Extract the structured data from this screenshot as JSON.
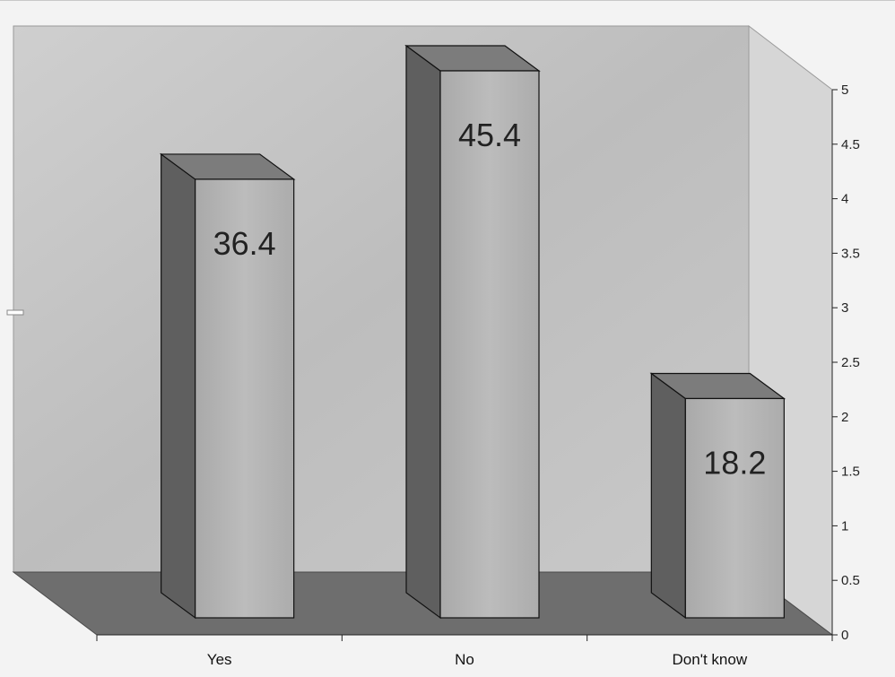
{
  "chart_data": {
    "type": "bar",
    "style": "3d-column",
    "categories": [
      "Yes",
      "No",
      "Don't know"
    ],
    "values": [
      36.4,
      45.4,
      18.2
    ],
    "data_labels": [
      "36.4",
      "45.4",
      "18.2"
    ],
    "ylim": [
      0,
      5
    ],
    "y_ticks": [
      "0",
      "0.5",
      "1",
      "1.5",
      "2",
      "2.5",
      "3",
      "3.5",
      "4",
      "4.5",
      "5"
    ],
    "y_axis_side": "right",
    "grid": false,
    "legend": "none",
    "title": "",
    "xlabel": "",
    "ylabel": ""
  },
  "colors": {
    "wall": "#c4c4c4",
    "side_wall": "#d6d6d6",
    "floor": "#6e6e6e",
    "bar_front": "#b3b3b3",
    "bar_side": "#5f5f5f",
    "bar_top": "#7c7c7c",
    "outline": "#111111"
  }
}
